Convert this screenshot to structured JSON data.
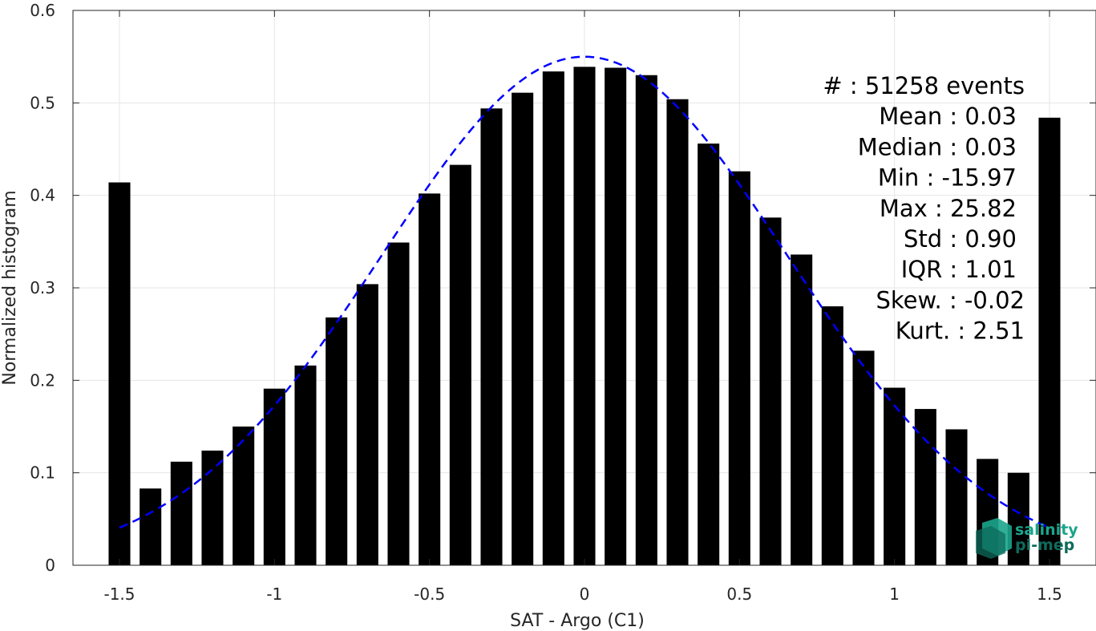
{
  "chart_data": {
    "type": "bar",
    "xlabel": "SAT - Argo (C1)",
    "ylabel": "Normalized histogram",
    "xlim": [
      -1.65,
      1.65
    ],
    "ylim": [
      0,
      0.6
    ],
    "xticks": [
      -1.5,
      -1,
      -0.5,
      0,
      0.5,
      1,
      1.5
    ],
    "xtick_labels": [
      "-1.5",
      "-1",
      "-0.5",
      "0",
      "0.5",
      "1",
      "1.5"
    ],
    "yticks": [
      0,
      0.1,
      0.2,
      0.3,
      0.4,
      0.5,
      0.6
    ],
    "ytick_labels": [
      "0",
      "0.1",
      "0.2",
      "0.3",
      "0.4",
      "0.5",
      "0.6"
    ],
    "grid": true,
    "bar_width": 0.07,
    "bar_color": "#000000",
    "x": [
      -1.5,
      -1.4,
      -1.3,
      -1.2,
      -1.1,
      -1.0,
      -0.9,
      -0.8,
      -0.7,
      -0.6,
      -0.5,
      -0.4,
      -0.3,
      -0.2,
      -0.1,
      0.0,
      0.1,
      0.2,
      0.3,
      0.4,
      0.5,
      0.6,
      0.7,
      0.8,
      0.9,
      1.0,
      1.1,
      1.2,
      1.3,
      1.4,
      1.5
    ],
    "values": [
      0.414,
      0.083,
      0.112,
      0.124,
      0.15,
      0.191,
      0.216,
      0.268,
      0.304,
      0.349,
      0.402,
      0.433,
      0.494,
      0.511,
      0.534,
      0.539,
      0.538,
      0.53,
      0.504,
      0.456,
      0.426,
      0.376,
      0.336,
      0.28,
      0.232,
      0.192,
      0.169,
      0.147,
      0.115,
      0.1,
      0.484
    ],
    "fit": {
      "style": "dashed",
      "color": "#0000ff",
      "peak": 0.55,
      "mean": 0.0,
      "sigma": 0.657,
      "x_range": [
        -1.5,
        1.5
      ]
    },
    "stats": [
      "#  : 51258 events",
      "Mean : 0.03",
      "Median : 0.03",
      "Min : -15.97",
      "Max : 25.82",
      "Std : 0.90",
      "IQR : 1.01",
      "Skew. : -0.02",
      "Kurt. : 2.51"
    ]
  },
  "logo": {
    "line1": "salinity",
    "line2": "pi-mep",
    "color1": "#1aa58c",
    "color2": "#0e6b5c"
  }
}
